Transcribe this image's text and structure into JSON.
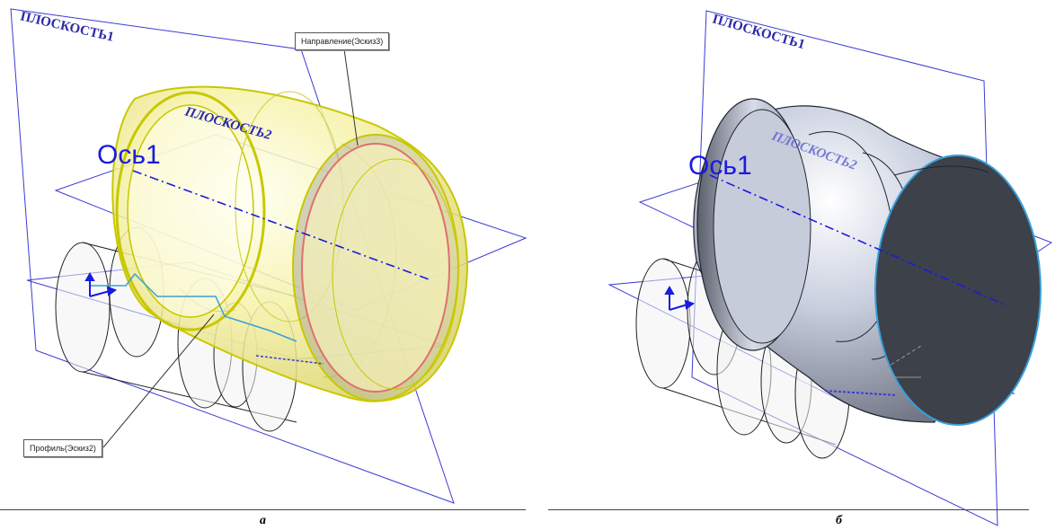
{
  "colors": {
    "plane": "#3b3bd6",
    "axis": "#1a1ae0",
    "yellow_fill": "#f4f0a0",
    "yellow_edge": "#c8c800",
    "red_edge": "#e07070",
    "metal_light": "#dde3ef",
    "metal_dark": "#3c414a",
    "sketch": "#39a0d8"
  },
  "panel_a": {
    "plane1_label": "ПЛОСКОСТЬ1",
    "plane2_label": "ПЛОСКОСТЬ2",
    "axis_label": "Ось1",
    "callout_direction": "Направление(Эскиз3)",
    "callout_profile": "Профиль(Эскиз2)",
    "caption": "а"
  },
  "panel_b": {
    "plane1_label": "ПЛОСКОСТЬ1",
    "plane2_label": "ПЛОСКОСТЬ2",
    "axis_label": "Ось1",
    "caption": "б"
  }
}
